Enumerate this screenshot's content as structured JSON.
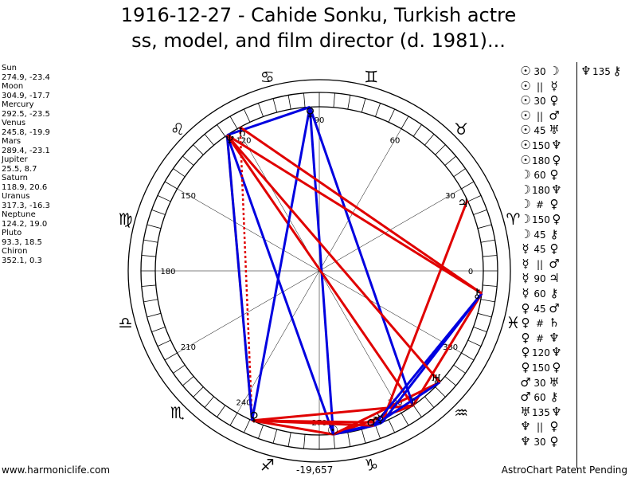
{
  "title": {
    "line1": "1916-12-27 - Cahide Sonku, Turkish actre",
    "line2": "ss, model, and film director (d. 1981)..."
  },
  "planets": [
    {
      "name": "Sun",
      "coords": "274.9, -23.4"
    },
    {
      "name": "Moon",
      "coords": "304.9, -17.7"
    },
    {
      "name": "Mercury",
      "coords": "292.5, -23.5"
    },
    {
      "name": "Venus",
      "coords": "245.8, -19.9"
    },
    {
      "name": "Mars",
      "coords": "289.4, -23.1"
    },
    {
      "name": "Jupiter",
      "coords": "25.5, 8.7"
    },
    {
      "name": "Saturn",
      "coords": "118.9, 20.6"
    },
    {
      "name": "Uranus",
      "coords": "317.3, -16.3"
    },
    {
      "name": "Neptune",
      "coords": "124.2, 19.0"
    },
    {
      "name": "Pluto",
      "coords": "93.3, 18.5"
    },
    {
      "name": "Chiron",
      "coords": "352.1, 0.3"
    }
  ],
  "aspects": [
    {
      "p1": "☉",
      "angle": "30",
      "p2": "☽"
    },
    {
      "p1": "☉",
      "angle": "||",
      "p2": "☿"
    },
    {
      "p1": "☉",
      "angle": "30",
      "p2": "♀"
    },
    {
      "p1": "☉",
      "angle": "||",
      "p2": "♂"
    },
    {
      "p1": "☉",
      "angle": "45",
      "p2": "♅"
    },
    {
      "p1": "☉",
      "angle": "150",
      "p2": "♆"
    },
    {
      "p1": "☉",
      "angle": "180",
      "p2": "♀"
    },
    {
      "p1": "☽",
      "angle": "60",
      "p2": "♀"
    },
    {
      "p1": "☽",
      "angle": "180",
      "p2": "♆"
    },
    {
      "p1": "☽",
      "angle": "#",
      "p2": "♀"
    },
    {
      "p1": "☽",
      "angle": "150",
      "p2": "♀"
    },
    {
      "p1": "☽",
      "angle": "45",
      "p2": "⚷"
    },
    {
      "p1": "☿",
      "angle": "45",
      "p2": "♀"
    },
    {
      "p1": "☿",
      "angle": "||",
      "p2": "♂"
    },
    {
      "p1": "☿",
      "angle": "90",
      "p2": "♃"
    },
    {
      "p1": "☿",
      "angle": "60",
      "p2": "⚷"
    },
    {
      "p1": "♀",
      "angle": "45",
      "p2": "♂"
    },
    {
      "p1": "♀",
      "angle": "#",
      "p2": "♄"
    },
    {
      "p1": "♀",
      "angle": "#",
      "p2": "♆"
    },
    {
      "p1": "♀",
      "angle": "120",
      "p2": "♆"
    },
    {
      "p1": "♀",
      "angle": "150",
      "p2": "♀"
    },
    {
      "p1": "♂",
      "angle": "30",
      "p2": "♅"
    },
    {
      "p1": "♂",
      "angle": "60",
      "p2": "⚷"
    },
    {
      "p1": "♅",
      "angle": "135",
      "p2": "♆"
    },
    {
      "p1": "♆",
      "angle": "||",
      "p2": "♀"
    },
    {
      "p1": "♆",
      "angle": "30",
      "p2": "♀"
    }
  ],
  "aspects_col2": [
    {
      "p1": "♆",
      "angle": "135",
      "p2": "⚷"
    }
  ],
  "wheel": {
    "degree_labels": [
      "0",
      "30",
      "60",
      "90",
      "120",
      "150",
      "180",
      "210",
      "240",
      "270",
      "300",
      "330"
    ],
    "signs": [
      {
        "glyph": "♈",
        "lon": 15
      },
      {
        "glyph": "♉",
        "lon": 45
      },
      {
        "glyph": "♊",
        "lon": 75
      },
      {
        "glyph": "♋",
        "lon": 105
      },
      {
        "glyph": "♌",
        "lon": 135
      },
      {
        "glyph": "♍",
        "lon": 165
      },
      {
        "glyph": "♎",
        "lon": 195
      },
      {
        "glyph": "♏",
        "lon": 225
      },
      {
        "glyph": "♐",
        "lon": 255
      },
      {
        "glyph": "♑",
        "lon": 285
      },
      {
        "glyph": "♒",
        "lon": 315
      },
      {
        "glyph": "♓",
        "lon": 345
      }
    ],
    "planet_glyphs": [
      {
        "glyph": "☉",
        "lon": 274.9
      },
      {
        "glyph": "☽",
        "lon": 304.9
      },
      {
        "glyph": "☿",
        "lon": 292.5
      },
      {
        "glyph": "♀",
        "lon": 245.8
      },
      {
        "glyph": "♂",
        "lon": 289.4
      },
      {
        "glyph": "♃",
        "lon": 25.5
      },
      {
        "glyph": "♄",
        "lon": 118.9
      },
      {
        "glyph": "♅",
        "lon": 317.3
      },
      {
        "glyph": "♆",
        "lon": 124.2
      },
      {
        "glyph": "♀",
        "lon": 93.3
      },
      {
        "glyph": "⚷",
        "lon": 352.1
      }
    ],
    "aspect_lines": [
      {
        "a": 274.9,
        "b": 304.9,
        "color": "#e00000"
      },
      {
        "a": 274.9,
        "b": 292.5,
        "color": "#0000e0"
      },
      {
        "a": 274.9,
        "b": 245.8,
        "color": "#e00000"
      },
      {
        "a": 274.9,
        "b": 289.4,
        "color": "#0000e0"
      },
      {
        "a": 274.9,
        "b": 317.3,
        "color": "#e00000"
      },
      {
        "a": 274.9,
        "b": 124.2,
        "color": "#0000e0"
      },
      {
        "a": 274.9,
        "b": 93.3,
        "color": "#0000e0"
      },
      {
        "a": 304.9,
        "b": 245.8,
        "color": "#e00000"
      },
      {
        "a": 304.9,
        "b": 124.2,
        "color": "#e00000"
      },
      {
        "a": 304.9,
        "b": 93.3,
        "color": "#e00000",
        "dash": true
      },
      {
        "a": 304.9,
        "b": 93.3,
        "color": "#0000e0"
      },
      {
        "a": 304.9,
        "b": 352.1,
        "color": "#e00000"
      },
      {
        "a": 292.5,
        "b": 245.8,
        "color": "#e00000"
      },
      {
        "a": 292.5,
        "b": 289.4,
        "color": "#0000e0"
      },
      {
        "a": 292.5,
        "b": 25.5,
        "color": "#e00000"
      },
      {
        "a": 292.5,
        "b": 352.1,
        "color": "#0000e0"
      },
      {
        "a": 245.8,
        "b": 289.4,
        "color": "#e00000"
      },
      {
        "a": 245.8,
        "b": 118.9,
        "color": "#e00000",
        "dash": true
      },
      {
        "a": 245.8,
        "b": 124.2,
        "color": "#e8a000"
      },
      {
        "a": 245.8,
        "b": 124.2,
        "color": "#0000e0"
      },
      {
        "a": 245.8,
        "b": 93.3,
        "color": "#0000e0"
      },
      {
        "a": 289.4,
        "b": 317.3,
        "color": "#0000e0"
      },
      {
        "a": 289.4,
        "b": 352.1,
        "color": "#0000e0"
      },
      {
        "a": 317.3,
        "b": 124.2,
        "color": "#e00000"
      },
      {
        "a": 124.2,
        "b": 93.3,
        "color": "#0000e0"
      },
      {
        "a": 124.2,
        "b": 352.1,
        "color": "#e00000"
      },
      {
        "a": 118.9,
        "b": 352.1,
        "color": "#e00000"
      }
    ]
  },
  "chart_value": "-19,657",
  "footer_left": "www.harmoniclife.com",
  "footer_right": "AstroChart Patent Pending"
}
